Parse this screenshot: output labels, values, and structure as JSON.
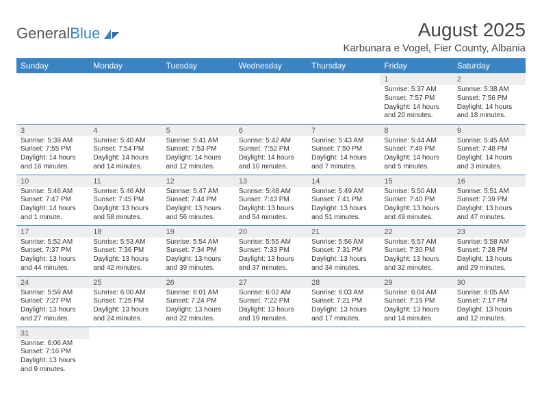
{
  "logo": {
    "text1": "General",
    "text2": "Blue"
  },
  "title": "August 2025",
  "location": "Karbunara e Vogel, Fier County, Albania",
  "colors": {
    "header_bg": "#3b84c4",
    "daynum_bg": "#eeeeee",
    "rule": "#3b84c4",
    "text": "#333333"
  },
  "dow": [
    "Sunday",
    "Monday",
    "Tuesday",
    "Wednesday",
    "Thursday",
    "Friday",
    "Saturday"
  ],
  "weeks": [
    [
      null,
      null,
      null,
      null,
      null,
      {
        "n": "1",
        "sr": "5:37 AM",
        "ss": "7:57 PM",
        "dl": "14 hours and 20 minutes."
      },
      {
        "n": "2",
        "sr": "5:38 AM",
        "ss": "7:56 PM",
        "dl": "14 hours and 18 minutes."
      }
    ],
    [
      {
        "n": "3",
        "sr": "5:39 AM",
        "ss": "7:55 PM",
        "dl": "14 hours and 16 minutes."
      },
      {
        "n": "4",
        "sr": "5:40 AM",
        "ss": "7:54 PM",
        "dl": "14 hours and 14 minutes."
      },
      {
        "n": "5",
        "sr": "5:41 AM",
        "ss": "7:53 PM",
        "dl": "14 hours and 12 minutes."
      },
      {
        "n": "6",
        "sr": "5:42 AM",
        "ss": "7:52 PM",
        "dl": "14 hours and 10 minutes."
      },
      {
        "n": "7",
        "sr": "5:43 AM",
        "ss": "7:50 PM",
        "dl": "14 hours and 7 minutes."
      },
      {
        "n": "8",
        "sr": "5:44 AM",
        "ss": "7:49 PM",
        "dl": "14 hours and 5 minutes."
      },
      {
        "n": "9",
        "sr": "5:45 AM",
        "ss": "7:48 PM",
        "dl": "14 hours and 3 minutes."
      }
    ],
    [
      {
        "n": "10",
        "sr": "5:46 AM",
        "ss": "7:47 PM",
        "dl": "14 hours and 1 minute."
      },
      {
        "n": "11",
        "sr": "5:46 AM",
        "ss": "7:45 PM",
        "dl": "13 hours and 58 minutes."
      },
      {
        "n": "12",
        "sr": "5:47 AM",
        "ss": "7:44 PM",
        "dl": "13 hours and 56 minutes."
      },
      {
        "n": "13",
        "sr": "5:48 AM",
        "ss": "7:43 PM",
        "dl": "13 hours and 54 minutes."
      },
      {
        "n": "14",
        "sr": "5:49 AM",
        "ss": "7:41 PM",
        "dl": "13 hours and 51 minutes."
      },
      {
        "n": "15",
        "sr": "5:50 AM",
        "ss": "7:40 PM",
        "dl": "13 hours and 49 minutes."
      },
      {
        "n": "16",
        "sr": "5:51 AM",
        "ss": "7:39 PM",
        "dl": "13 hours and 47 minutes."
      }
    ],
    [
      {
        "n": "17",
        "sr": "5:52 AM",
        "ss": "7:37 PM",
        "dl": "13 hours and 44 minutes."
      },
      {
        "n": "18",
        "sr": "5:53 AM",
        "ss": "7:36 PM",
        "dl": "13 hours and 42 minutes."
      },
      {
        "n": "19",
        "sr": "5:54 AM",
        "ss": "7:34 PM",
        "dl": "13 hours and 39 minutes."
      },
      {
        "n": "20",
        "sr": "5:55 AM",
        "ss": "7:33 PM",
        "dl": "13 hours and 37 minutes."
      },
      {
        "n": "21",
        "sr": "5:56 AM",
        "ss": "7:31 PM",
        "dl": "13 hours and 34 minutes."
      },
      {
        "n": "22",
        "sr": "5:57 AM",
        "ss": "7:30 PM",
        "dl": "13 hours and 32 minutes."
      },
      {
        "n": "23",
        "sr": "5:58 AM",
        "ss": "7:28 PM",
        "dl": "13 hours and 29 minutes."
      }
    ],
    [
      {
        "n": "24",
        "sr": "5:59 AM",
        "ss": "7:27 PM",
        "dl": "13 hours and 27 minutes."
      },
      {
        "n": "25",
        "sr": "6:00 AM",
        "ss": "7:25 PM",
        "dl": "13 hours and 24 minutes."
      },
      {
        "n": "26",
        "sr": "6:01 AM",
        "ss": "7:24 PM",
        "dl": "13 hours and 22 minutes."
      },
      {
        "n": "27",
        "sr": "6:02 AM",
        "ss": "7:22 PM",
        "dl": "13 hours and 19 minutes."
      },
      {
        "n": "28",
        "sr": "6:03 AM",
        "ss": "7:21 PM",
        "dl": "13 hours and 17 minutes."
      },
      {
        "n": "29",
        "sr": "6:04 AM",
        "ss": "7:19 PM",
        "dl": "13 hours and 14 minutes."
      },
      {
        "n": "30",
        "sr": "6:05 AM",
        "ss": "7:17 PM",
        "dl": "13 hours and 12 minutes."
      }
    ],
    [
      {
        "n": "31",
        "sr": "6:06 AM",
        "ss": "7:16 PM",
        "dl": "13 hours and 9 minutes."
      },
      null,
      null,
      null,
      null,
      null,
      null
    ]
  ],
  "labels": {
    "sunrise": "Sunrise: ",
    "sunset": "Sunset: ",
    "daylight": "Daylight: "
  }
}
